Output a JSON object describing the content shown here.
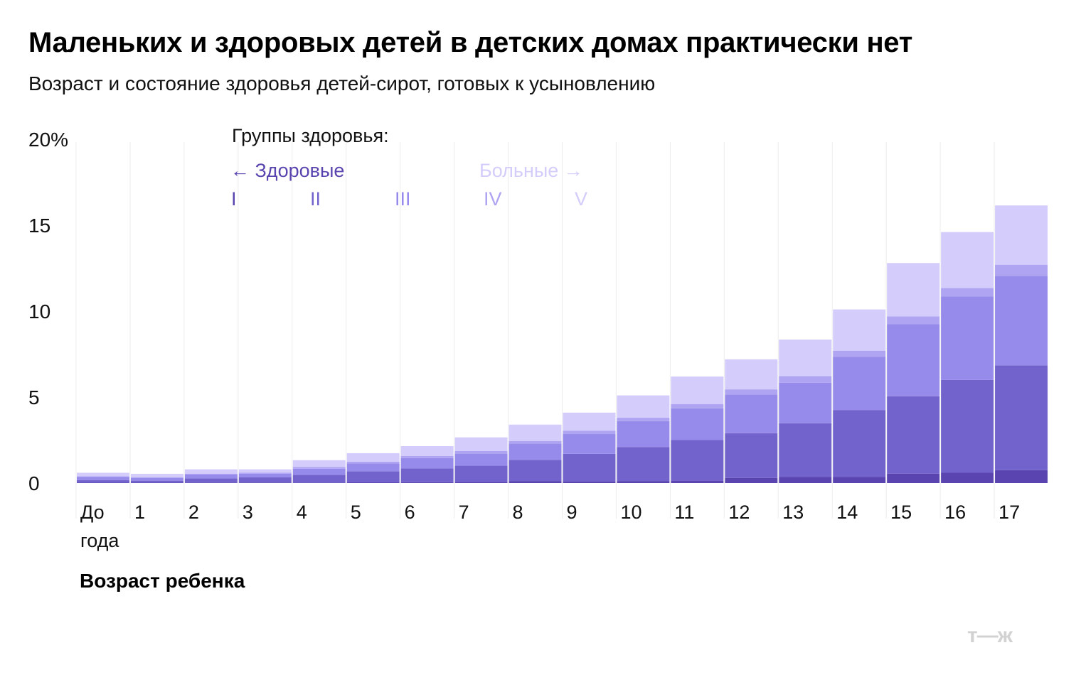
{
  "header": {
    "title": "Маленьких и здоровых детей в детских домах практически нет",
    "subtitle": "Возраст и состояние здоровья детей-сирот, готовых к усыновлению"
  },
  "chart_data": {
    "type": "bar",
    "stacked": true,
    "xlabel": "Возраст ребенка",
    "y_ticks": [
      "0",
      "5",
      "10",
      "15",
      "20%"
    ],
    "ylim": [
      0,
      20
    ],
    "grid": true,
    "categories": [
      "До\nгода",
      "1",
      "2",
      "3",
      "4",
      "5",
      "6",
      "7",
      "8",
      "9",
      "10",
      "11",
      "12",
      "13",
      "14",
      "15",
      "16",
      "17"
    ],
    "legend": {
      "title": "Группы здоровья:",
      "healthy_label": "← Здоровые",
      "sick_label": "Больные →",
      "placement": "top-left"
    },
    "series": [
      {
        "name": "I",
        "color": "#5a44b0",
        "values": [
          0.02,
          0.02,
          0.03,
          0.03,
          0.03,
          0.04,
          0.05,
          0.06,
          0.12,
          0.1,
          0.12,
          0.14,
          0.3,
          0.35,
          0.35,
          0.55,
          0.6,
          0.75
        ]
      },
      {
        "name": "II",
        "color": "#7263cc",
        "values": [
          0.15,
          0.12,
          0.25,
          0.3,
          0.45,
          0.65,
          0.8,
          0.95,
          1.23,
          1.6,
          1.98,
          2.36,
          2.6,
          3.13,
          3.9,
          4.5,
          5.4,
          6.1
        ]
      },
      {
        "name": "III",
        "color": "#968aea",
        "values": [
          0.18,
          0.15,
          0.22,
          0.22,
          0.35,
          0.45,
          0.6,
          0.7,
          0.95,
          1.15,
          1.5,
          1.85,
          2.25,
          2.35,
          3.1,
          4.2,
          4.85,
          5.2
        ]
      },
      {
        "name": "IV",
        "color": "#aea4f2",
        "values": [
          0.05,
          0.05,
          0.05,
          0.05,
          0.1,
          0.1,
          0.12,
          0.15,
          0.15,
          0.2,
          0.2,
          0.25,
          0.3,
          0.4,
          0.35,
          0.45,
          0.5,
          0.65
        ]
      },
      {
        "name": "V",
        "color": "#d4cdfb",
        "values": [
          0.2,
          0.2,
          0.25,
          0.2,
          0.4,
          0.5,
          0.58,
          0.8,
          0.95,
          1.05,
          1.3,
          1.6,
          1.75,
          2.12,
          2.4,
          3.1,
          3.25,
          3.45
        ]
      }
    ]
  }
}
